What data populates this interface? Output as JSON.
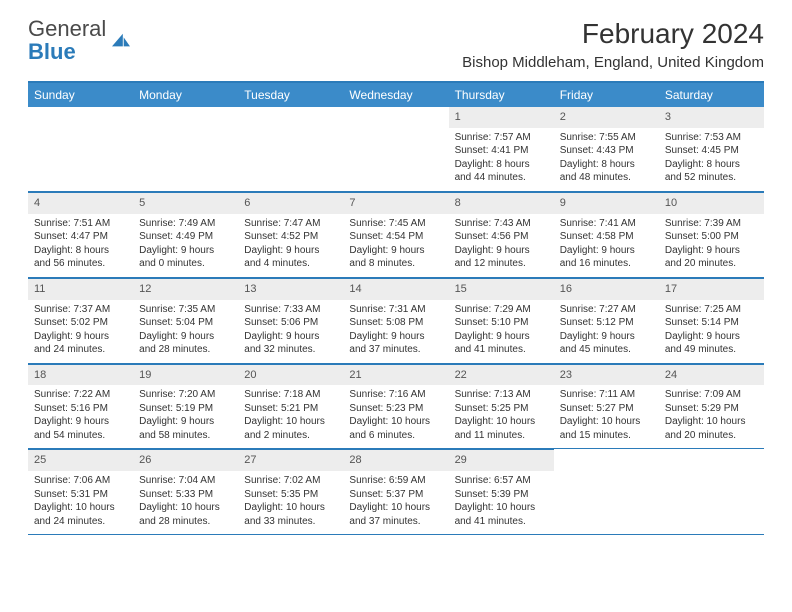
{
  "logo": {
    "part1": "General",
    "part2": "Blue"
  },
  "header": {
    "month_title": "February 2024",
    "location": "Bishop Middleham, England, United Kingdom"
  },
  "style": {
    "accent": "#3b8bc9",
    "accent_border": "#2b7bb9",
    "daynum_bg": "#ededed",
    "text": "#333333",
    "background": "#ffffff",
    "title_fontsize": 28,
    "location_fontsize": 15,
    "dayhead_fontsize": 12,
    "body_fontsize": 10
  },
  "calendar": {
    "day_names": [
      "Sunday",
      "Monday",
      "Tuesday",
      "Wednesday",
      "Thursday",
      "Friday",
      "Saturday"
    ],
    "leading_blanks": 4,
    "days": [
      {
        "n": 1,
        "sunrise": "7:57 AM",
        "sunset": "4:41 PM",
        "dl": "8 hours and 44 minutes."
      },
      {
        "n": 2,
        "sunrise": "7:55 AM",
        "sunset": "4:43 PM",
        "dl": "8 hours and 48 minutes."
      },
      {
        "n": 3,
        "sunrise": "7:53 AM",
        "sunset": "4:45 PM",
        "dl": "8 hours and 52 minutes."
      },
      {
        "n": 4,
        "sunrise": "7:51 AM",
        "sunset": "4:47 PM",
        "dl": "8 hours and 56 minutes."
      },
      {
        "n": 5,
        "sunrise": "7:49 AM",
        "sunset": "4:49 PM",
        "dl": "9 hours and 0 minutes."
      },
      {
        "n": 6,
        "sunrise": "7:47 AM",
        "sunset": "4:52 PM",
        "dl": "9 hours and 4 minutes."
      },
      {
        "n": 7,
        "sunrise": "7:45 AM",
        "sunset": "4:54 PM",
        "dl": "9 hours and 8 minutes."
      },
      {
        "n": 8,
        "sunrise": "7:43 AM",
        "sunset": "4:56 PM",
        "dl": "9 hours and 12 minutes."
      },
      {
        "n": 9,
        "sunrise": "7:41 AM",
        "sunset": "4:58 PM",
        "dl": "9 hours and 16 minutes."
      },
      {
        "n": 10,
        "sunrise": "7:39 AM",
        "sunset": "5:00 PM",
        "dl": "9 hours and 20 minutes."
      },
      {
        "n": 11,
        "sunrise": "7:37 AM",
        "sunset": "5:02 PM",
        "dl": "9 hours and 24 minutes."
      },
      {
        "n": 12,
        "sunrise": "7:35 AM",
        "sunset": "5:04 PM",
        "dl": "9 hours and 28 minutes."
      },
      {
        "n": 13,
        "sunrise": "7:33 AM",
        "sunset": "5:06 PM",
        "dl": "9 hours and 32 minutes."
      },
      {
        "n": 14,
        "sunrise": "7:31 AM",
        "sunset": "5:08 PM",
        "dl": "9 hours and 37 minutes."
      },
      {
        "n": 15,
        "sunrise": "7:29 AM",
        "sunset": "5:10 PM",
        "dl": "9 hours and 41 minutes."
      },
      {
        "n": 16,
        "sunrise": "7:27 AM",
        "sunset": "5:12 PM",
        "dl": "9 hours and 45 minutes."
      },
      {
        "n": 17,
        "sunrise": "7:25 AM",
        "sunset": "5:14 PM",
        "dl": "9 hours and 49 minutes."
      },
      {
        "n": 18,
        "sunrise": "7:22 AM",
        "sunset": "5:16 PM",
        "dl": "9 hours and 54 minutes."
      },
      {
        "n": 19,
        "sunrise": "7:20 AM",
        "sunset": "5:19 PM",
        "dl": "9 hours and 58 minutes."
      },
      {
        "n": 20,
        "sunrise": "7:18 AM",
        "sunset": "5:21 PM",
        "dl": "10 hours and 2 minutes."
      },
      {
        "n": 21,
        "sunrise": "7:16 AM",
        "sunset": "5:23 PM",
        "dl": "10 hours and 6 minutes."
      },
      {
        "n": 22,
        "sunrise": "7:13 AM",
        "sunset": "5:25 PM",
        "dl": "10 hours and 11 minutes."
      },
      {
        "n": 23,
        "sunrise": "7:11 AM",
        "sunset": "5:27 PM",
        "dl": "10 hours and 15 minutes."
      },
      {
        "n": 24,
        "sunrise": "7:09 AM",
        "sunset": "5:29 PM",
        "dl": "10 hours and 20 minutes."
      },
      {
        "n": 25,
        "sunrise": "7:06 AM",
        "sunset": "5:31 PM",
        "dl": "10 hours and 24 minutes."
      },
      {
        "n": 26,
        "sunrise": "7:04 AM",
        "sunset": "5:33 PM",
        "dl": "10 hours and 28 minutes."
      },
      {
        "n": 27,
        "sunrise": "7:02 AM",
        "sunset": "5:35 PM",
        "dl": "10 hours and 33 minutes."
      },
      {
        "n": 28,
        "sunrise": "6:59 AM",
        "sunset": "5:37 PM",
        "dl": "10 hours and 37 minutes."
      },
      {
        "n": 29,
        "sunrise": "6:57 AM",
        "sunset": "5:39 PM",
        "dl": "10 hours and 41 minutes."
      }
    ],
    "labels": {
      "sunrise": "Sunrise:",
      "sunset": "Sunset:",
      "daylight": "Daylight:"
    }
  }
}
